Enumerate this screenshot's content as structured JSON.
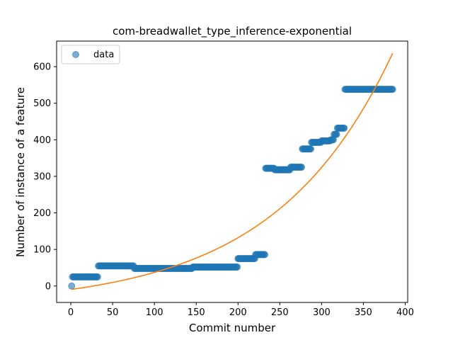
{
  "chart_data": {
    "type": "scatter",
    "title": "com-breadwallet_type_inference-exponential",
    "xlabel": "Commit number",
    "ylabel": "Number of instance of a feature",
    "xlim": [
      -17,
      403
    ],
    "ylim": [
      -45,
      670
    ],
    "xticks": [
      0,
      50,
      100,
      150,
      200,
      250,
      300,
      350,
      400
    ],
    "yticks": [
      0,
      100,
      200,
      300,
      400,
      500,
      600
    ],
    "legend": {
      "placement": "top-left",
      "entries": [
        "data"
      ]
    },
    "colors": {
      "data": "#1f77b4",
      "fit": "#ff7f0e"
    },
    "series": [
      {
        "name": "data",
        "kind": "points",
        "segments": [
          {
            "x_start": 1,
            "x_end": 1,
            "y": 0
          },
          {
            "x_start": 2,
            "x_end": 32,
            "y": 25
          },
          {
            "x_start": 33,
            "x_end": 75,
            "y": 55
          },
          {
            "x_start": 76,
            "x_end": 145,
            "y": 48
          },
          {
            "x_start": 146,
            "x_end": 199,
            "y": 52
          },
          {
            "x_start": 200,
            "x_end": 220,
            "y": 75
          },
          {
            "x_start": 221,
            "x_end": 232,
            "y": 86
          },
          {
            "x_start": 233,
            "x_end": 243,
            "y": 322
          },
          {
            "x_start": 244,
            "x_end": 262,
            "y": 318
          },
          {
            "x_start": 263,
            "x_end": 276,
            "y": 325
          },
          {
            "x_start": 277,
            "x_end": 287,
            "y": 375
          },
          {
            "x_start": 288,
            "x_end": 299,
            "y": 393
          },
          {
            "x_start": 300,
            "x_end": 310,
            "y": 397
          },
          {
            "x_start": 311,
            "x_end": 314,
            "y": 400
          },
          {
            "x_start": 315,
            "x_end": 318,
            "y": 415
          },
          {
            "x_start": 319,
            "x_end": 327,
            "y": 432
          },
          {
            "x_start": 328,
            "x_end": 385,
            "y": 538
          }
        ]
      },
      {
        "kind": "fit-line",
        "model": "exponential",
        "params": {
          "a": 45.5,
          "b": 0.00707,
          "c": -55
        },
        "x_start": 1,
        "x_end": 385
      }
    ]
  }
}
